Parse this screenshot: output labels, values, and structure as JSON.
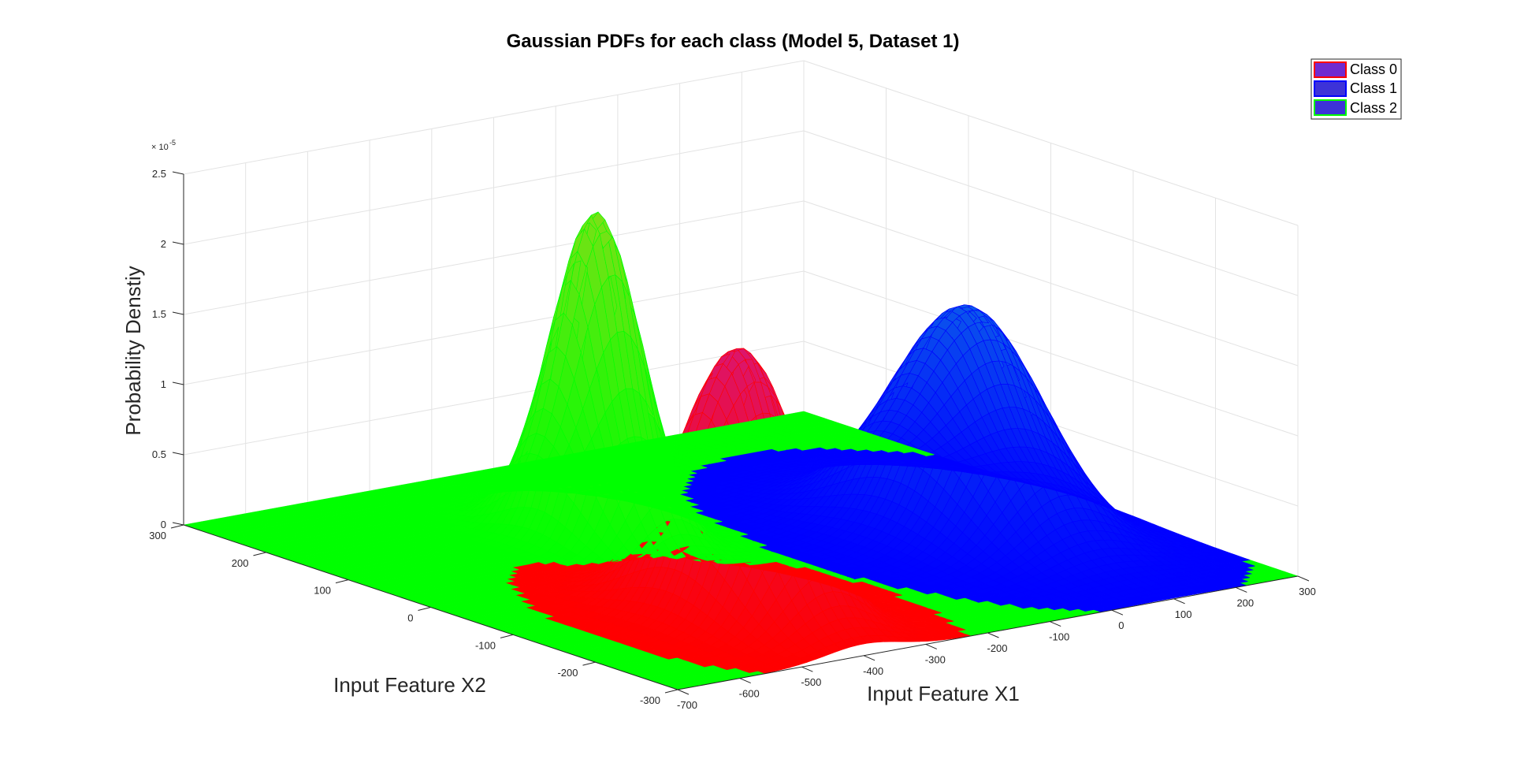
{
  "chart_data": {
    "type": "surface",
    "title": "Gaussian PDFs for each class (Model 5, Dataset 1)",
    "xlabel": "Input Feature X1",
    "ylabel": "Input Feature X2",
    "zlabel": "Probability Denstiy",
    "z_exponent_label": "× 10",
    "z_exponent_power": "-5",
    "xlim": [
      -700,
      300
    ],
    "ylim": [
      -300,
      300
    ],
    "zlim": [
      0,
      2.5
    ],
    "x_ticks": [
      "-700",
      "-600",
      "-500",
      "-400",
      "-300",
      "-200",
      "-100",
      "0",
      "100",
      "200",
      "300"
    ],
    "y_ticks": [
      "-300",
      "-200",
      "-100",
      "0",
      "100",
      "200",
      "300"
    ],
    "z_ticks": [
      "0",
      "0.5",
      "1",
      "1.5",
      "2",
      "2.5"
    ],
    "x_tick_values": [
      -700,
      -600,
      -500,
      -400,
      -300,
      -200,
      -100,
      0,
      100,
      200,
      300
    ],
    "y_tick_values": [
      -300,
      -200,
      -100,
      0,
      100,
      200,
      300
    ],
    "z_tick_values": [
      0,
      0.5,
      1,
      1.5,
      2,
      2.5
    ],
    "grid": true,
    "legend_position": "top-right",
    "series": [
      {
        "name": "Class 0",
        "color": "#ff0000",
        "mean": [
          -400,
          -150
        ],
        "sigma": [
          60,
          60
        ],
        "peak": 1.9,
        "legend_swatch": "#6f2bd0",
        "legend_edge": "#ff0000"
      },
      {
        "name": "Class 1",
        "color": "#0000ff",
        "mean": [
          100,
          -50
        ],
        "sigma": [
          75,
          75
        ],
        "peak": 1.6,
        "legend_swatch": "#3d33d8",
        "legend_edge": "#0000ff"
      },
      {
        "name": "Class 2",
        "color": "#00ff00",
        "mean": [
          -300,
          100
        ],
        "sigma": [
          45,
          45
        ],
        "peak": 2.3,
        "legend_swatch": "#3d33d8",
        "legend_edge": "#00ff00"
      }
    ]
  }
}
